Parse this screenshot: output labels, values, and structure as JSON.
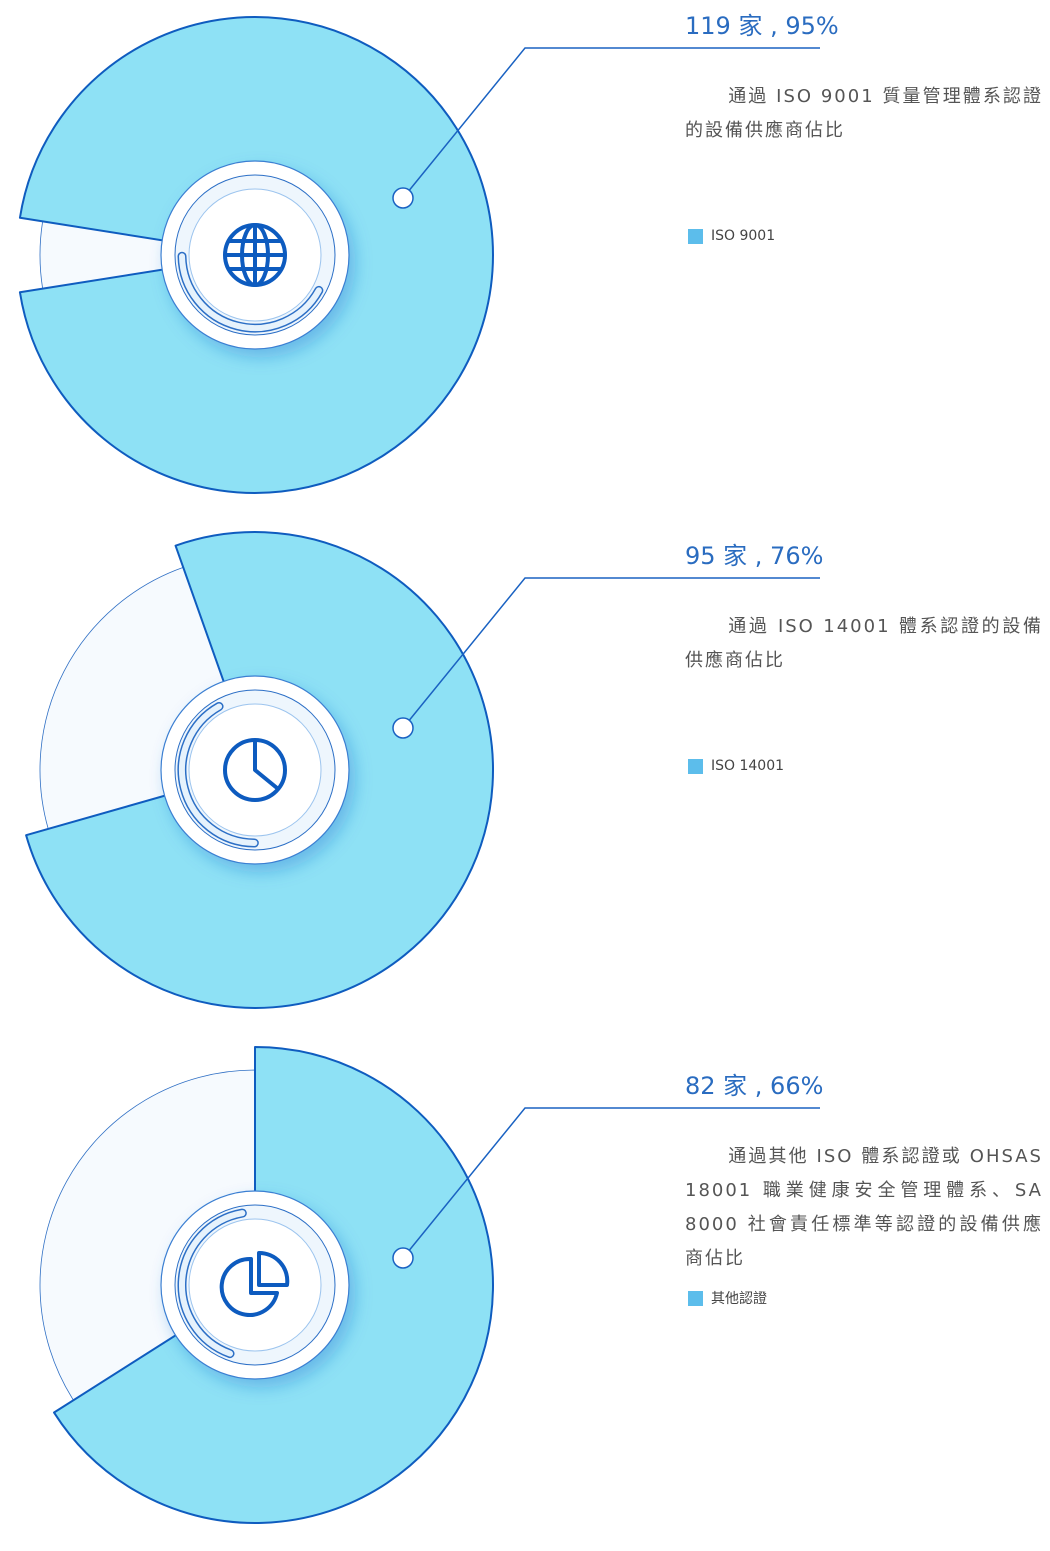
{
  "chart_data": [
    {
      "type": "pie",
      "categories": [
        "ISO 9001"
      ],
      "values": [
        95
      ],
      "value_labels": [
        "119 家 , 95%"
      ],
      "description": "通過 ISO 9001 質量管理體系認證的設備供應商佔比",
      "color": "#8ee1f5"
    },
    {
      "type": "pie",
      "categories": [
        "ISO 14001"
      ],
      "values": [
        76
      ],
      "value_labels": [
        "95 家 , 76%"
      ],
      "description": "通過 ISO 14001 體系認證的設備供應商佔比",
      "color": "#8ee1f5"
    },
    {
      "type": "pie",
      "categories": [
        "其他認證"
      ],
      "values": [
        66
      ],
      "value_labels": [
        "82 家 , 66%"
      ],
      "description": "通過其他 ISO 體系認證或 OHSAS 18001 職業健康安全管理體系、SA 8000 社會責任標準等認證的設備供應商佔比",
      "color": "#8ee1f5"
    }
  ]
}
